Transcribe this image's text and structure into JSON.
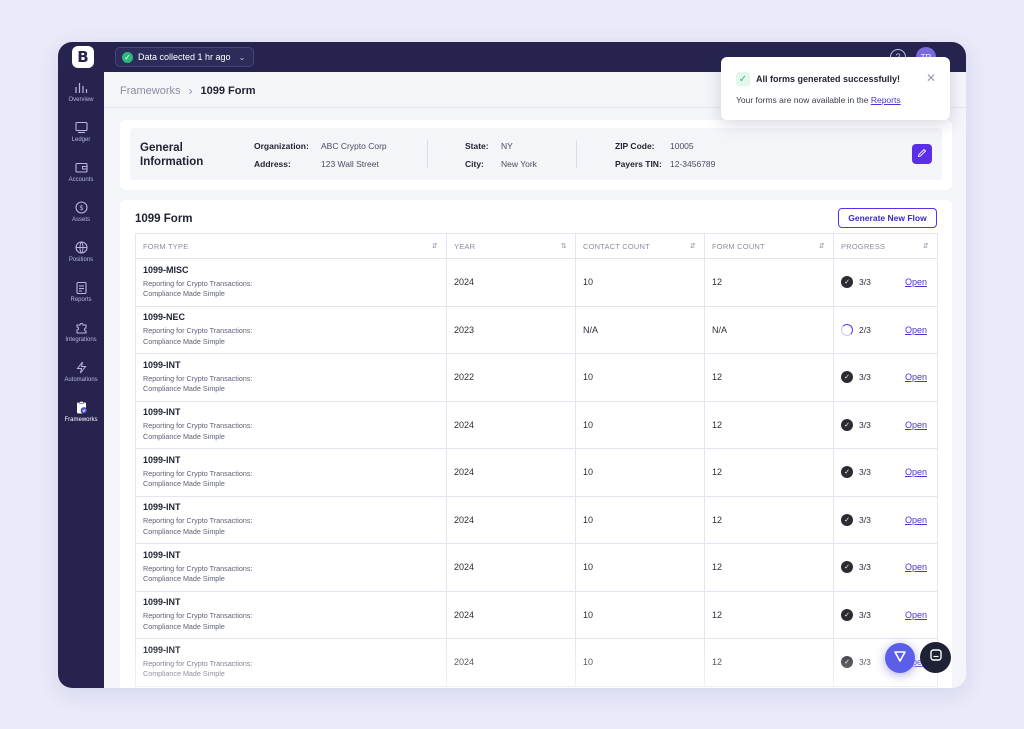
{
  "topbar": {
    "logo_letter": "B",
    "status_text": "Data collected 1 hr ago",
    "avatar_initials": "TR",
    "status_color": "#2db87b"
  },
  "sidebar": {
    "items": [
      {
        "label": "Overview",
        "icon": "bar-chart-icon"
      },
      {
        "label": "Ledger",
        "icon": "ledger-icon"
      },
      {
        "label": "Accounts",
        "icon": "wallet-icon"
      },
      {
        "label": "Assets",
        "icon": "dollar-coin-icon"
      },
      {
        "label": "Positions",
        "icon": "globe-icon"
      },
      {
        "label": "Reports",
        "icon": "clipboard-icon"
      },
      {
        "label": "Integrations",
        "icon": "puzzle-icon"
      },
      {
        "label": "Automations",
        "icon": "lightning-icon"
      },
      {
        "label": "Frameworks",
        "icon": "clipboard-check-icon",
        "active": true
      }
    ]
  },
  "breadcrumb": {
    "parent": "Frameworks",
    "current": "1099 Form"
  },
  "general_info": {
    "title": "General Information",
    "organization_label": "Organization:",
    "organization": "ABC Crypto Corp",
    "address_label": "Address:",
    "address": "123 Wall Street",
    "state_label": "State:",
    "state": "NY",
    "city_label": "City:",
    "city": "New York",
    "zip_label": "ZIP Code:",
    "zip": "10005",
    "tin_label": "Payers TIN:",
    "tin": "12-3456789"
  },
  "form_section": {
    "title": "1099 Form",
    "generate_button": "Generate New Flow",
    "columns": [
      "FORM TYPE",
      "YEAR",
      "CONTACT COUNT",
      "FORM COUNT",
      "PROGRESS"
    ],
    "open_label": "Open",
    "rows": [
      {
        "type": "1099-MISC",
        "desc1": "Reporting for Crypto Transactions:",
        "desc2": "Compliance Made Simple",
        "year": "2024",
        "contacts": "10",
        "forms": "12",
        "progress": "3/3",
        "complete": true
      },
      {
        "type": "1099-NEC",
        "desc1": "Reporting for Crypto Transactions:",
        "desc2": "Compliance Made Simple",
        "year": "2023",
        "contacts": "N/A",
        "forms": "N/A",
        "progress": "2/3",
        "complete": false
      },
      {
        "type": "1099-INT",
        "desc1": "Reporting for Crypto Transactions:",
        "desc2": "Compliance Made Simple",
        "year": "2022",
        "contacts": "10",
        "forms": "12",
        "progress": "3/3",
        "complete": true
      },
      {
        "type": "1099-INT",
        "desc1": "Reporting for Crypto Transactions:",
        "desc2": "Compliance Made Simple",
        "year": "2024",
        "contacts": "10",
        "forms": "12",
        "progress": "3/3",
        "complete": true
      },
      {
        "type": "1099-INT",
        "desc1": "Reporting for Crypto Transactions:",
        "desc2": "Compliance Made Simple",
        "year": "2024",
        "contacts": "10",
        "forms": "12",
        "progress": "3/3",
        "complete": true
      },
      {
        "type": "1099-INT",
        "desc1": "Reporting for Crypto Transactions:",
        "desc2": "Compliance Made Simple",
        "year": "2024",
        "contacts": "10",
        "forms": "12",
        "progress": "3/3",
        "complete": true
      },
      {
        "type": "1099-INT",
        "desc1": "Reporting for Crypto Transactions:",
        "desc2": "Compliance Made Simple",
        "year": "2024",
        "contacts": "10",
        "forms": "12",
        "progress": "3/3",
        "complete": true
      },
      {
        "type": "1099-INT",
        "desc1": "Reporting for Crypto Transactions:",
        "desc2": "Compliance Made Simple",
        "year": "2024",
        "contacts": "10",
        "forms": "12",
        "progress": "3/3",
        "complete": true
      },
      {
        "type": "1099-INT",
        "desc1": "Reporting for Crypto Transactions:",
        "desc2": "Compliance Made Simple",
        "year": "2024",
        "contacts": "10",
        "forms": "12",
        "progress": "3/3",
        "complete": true
      }
    ]
  },
  "toast": {
    "title": "All forms generated successfully!",
    "message": "Your forms are now available in the",
    "link": "Reports"
  },
  "colors": {
    "accent": "#5b2ee8",
    "sidebar": "#26244f",
    "success": "#2db87b"
  }
}
